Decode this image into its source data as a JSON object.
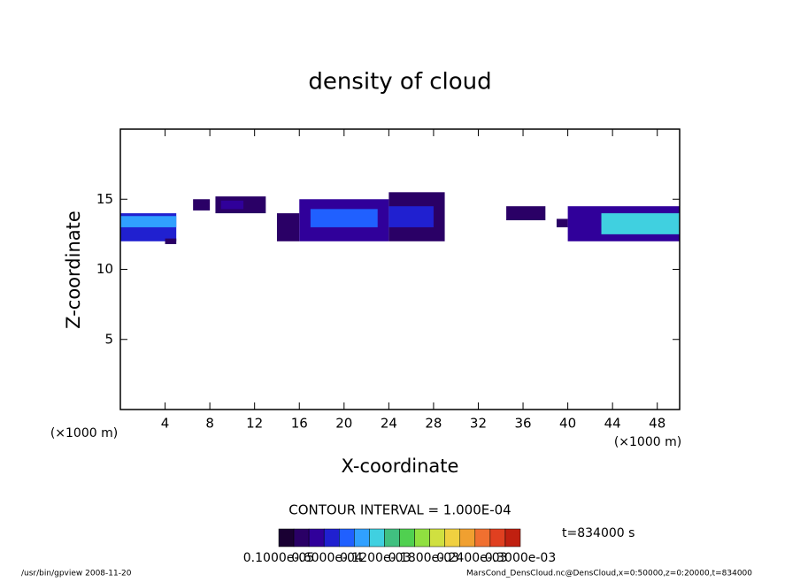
{
  "chart_data": {
    "type": "cellplot",
    "title": "density of cloud",
    "x_label": "X-coordinate",
    "y_label": "Z-coordinate",
    "x_unit": "(×1000 m)",
    "y_unit": "(×1000 m)",
    "xlim": [
      0,
      50
    ],
    "ylim": [
      0,
      20
    ],
    "xticks": [
      4,
      8,
      12,
      16,
      20,
      24,
      28,
      32,
      36,
      40,
      44,
      48
    ],
    "yticks": [
      5,
      10,
      15
    ],
    "cells": [
      {
        "x0": 0,
        "x1": 5,
        "z0": 12,
        "z1": 14,
        "value": 7e-05
      },
      {
        "x0": 0,
        "x1": 5,
        "z0": 13,
        "z1": 13.8,
        "value": 0.0001
      },
      {
        "x0": 4,
        "x1": 5,
        "z0": 11.8,
        "z1": 12.2,
        "value": 3e-05
      },
      {
        "x0": 6.5,
        "x1": 8,
        "z0": 14.2,
        "z1": 15,
        "value": 3e-05
      },
      {
        "x0": 8.5,
        "x1": 13,
        "z0": 14,
        "z1": 15.2,
        "value": 3e-05
      },
      {
        "x0": 9,
        "x1": 11,
        "z0": 14.3,
        "z1": 14.9,
        "value": 5e-05
      },
      {
        "x0": 14,
        "x1": 16,
        "z0": 12,
        "z1": 14,
        "value": 3e-05
      },
      {
        "x0": 16,
        "x1": 24,
        "z0": 12,
        "z1": 15,
        "value": 4e-05
      },
      {
        "x0": 17,
        "x1": 23,
        "z0": 13,
        "z1": 14.3,
        "value": 8e-05
      },
      {
        "x0": 24,
        "x1": 29,
        "z0": 12,
        "z1": 15.5,
        "value": 3e-05
      },
      {
        "x0": 24,
        "x1": 28,
        "z0": 13,
        "z1": 14.5,
        "value": 6e-05
      },
      {
        "x0": 34.5,
        "x1": 38,
        "z0": 13.5,
        "z1": 14.5,
        "value": 3e-05
      },
      {
        "x0": 39,
        "x1": 40,
        "z0": 13,
        "z1": 13.6,
        "value": 3e-05
      },
      {
        "x0": 40,
        "x1": 50,
        "z0": 12,
        "z1": 14.5,
        "value": 5e-05
      },
      {
        "x0": 43,
        "x1": 50,
        "z0": 12.5,
        "z1": 14,
        "value": 0.00012
      }
    ],
    "colorbar": {
      "range": [
        0,
        0.0003
      ],
      "colors": [
        "#1a0033",
        "#2a0066",
        "#30009a",
        "#2020d0",
        "#2060ff",
        "#30a0ff",
        "#40d0e0",
        "#40c080",
        "#50d050",
        "#90e040",
        "#d0e040",
        "#f0d040",
        "#f0a030",
        "#f07030",
        "#e04020",
        "#c02010"
      ],
      "labels": [
        "0.1000e-05",
        "0.6000e-04",
        "0.1200e-03",
        "0.1800e-03",
        "0.2400e-03",
        "0.3000e-03"
      ]
    },
    "contour_interval": "CONTOUR INTERVAL = 1.000E-04",
    "time_label": "t=834000 s",
    "footer_left": "/usr/bin/gpview   2008-11-20",
    "footer_right": "MarsCond_DensCloud.nc@DensCloud,x=0:50000,z=0:20000,t=834000"
  }
}
